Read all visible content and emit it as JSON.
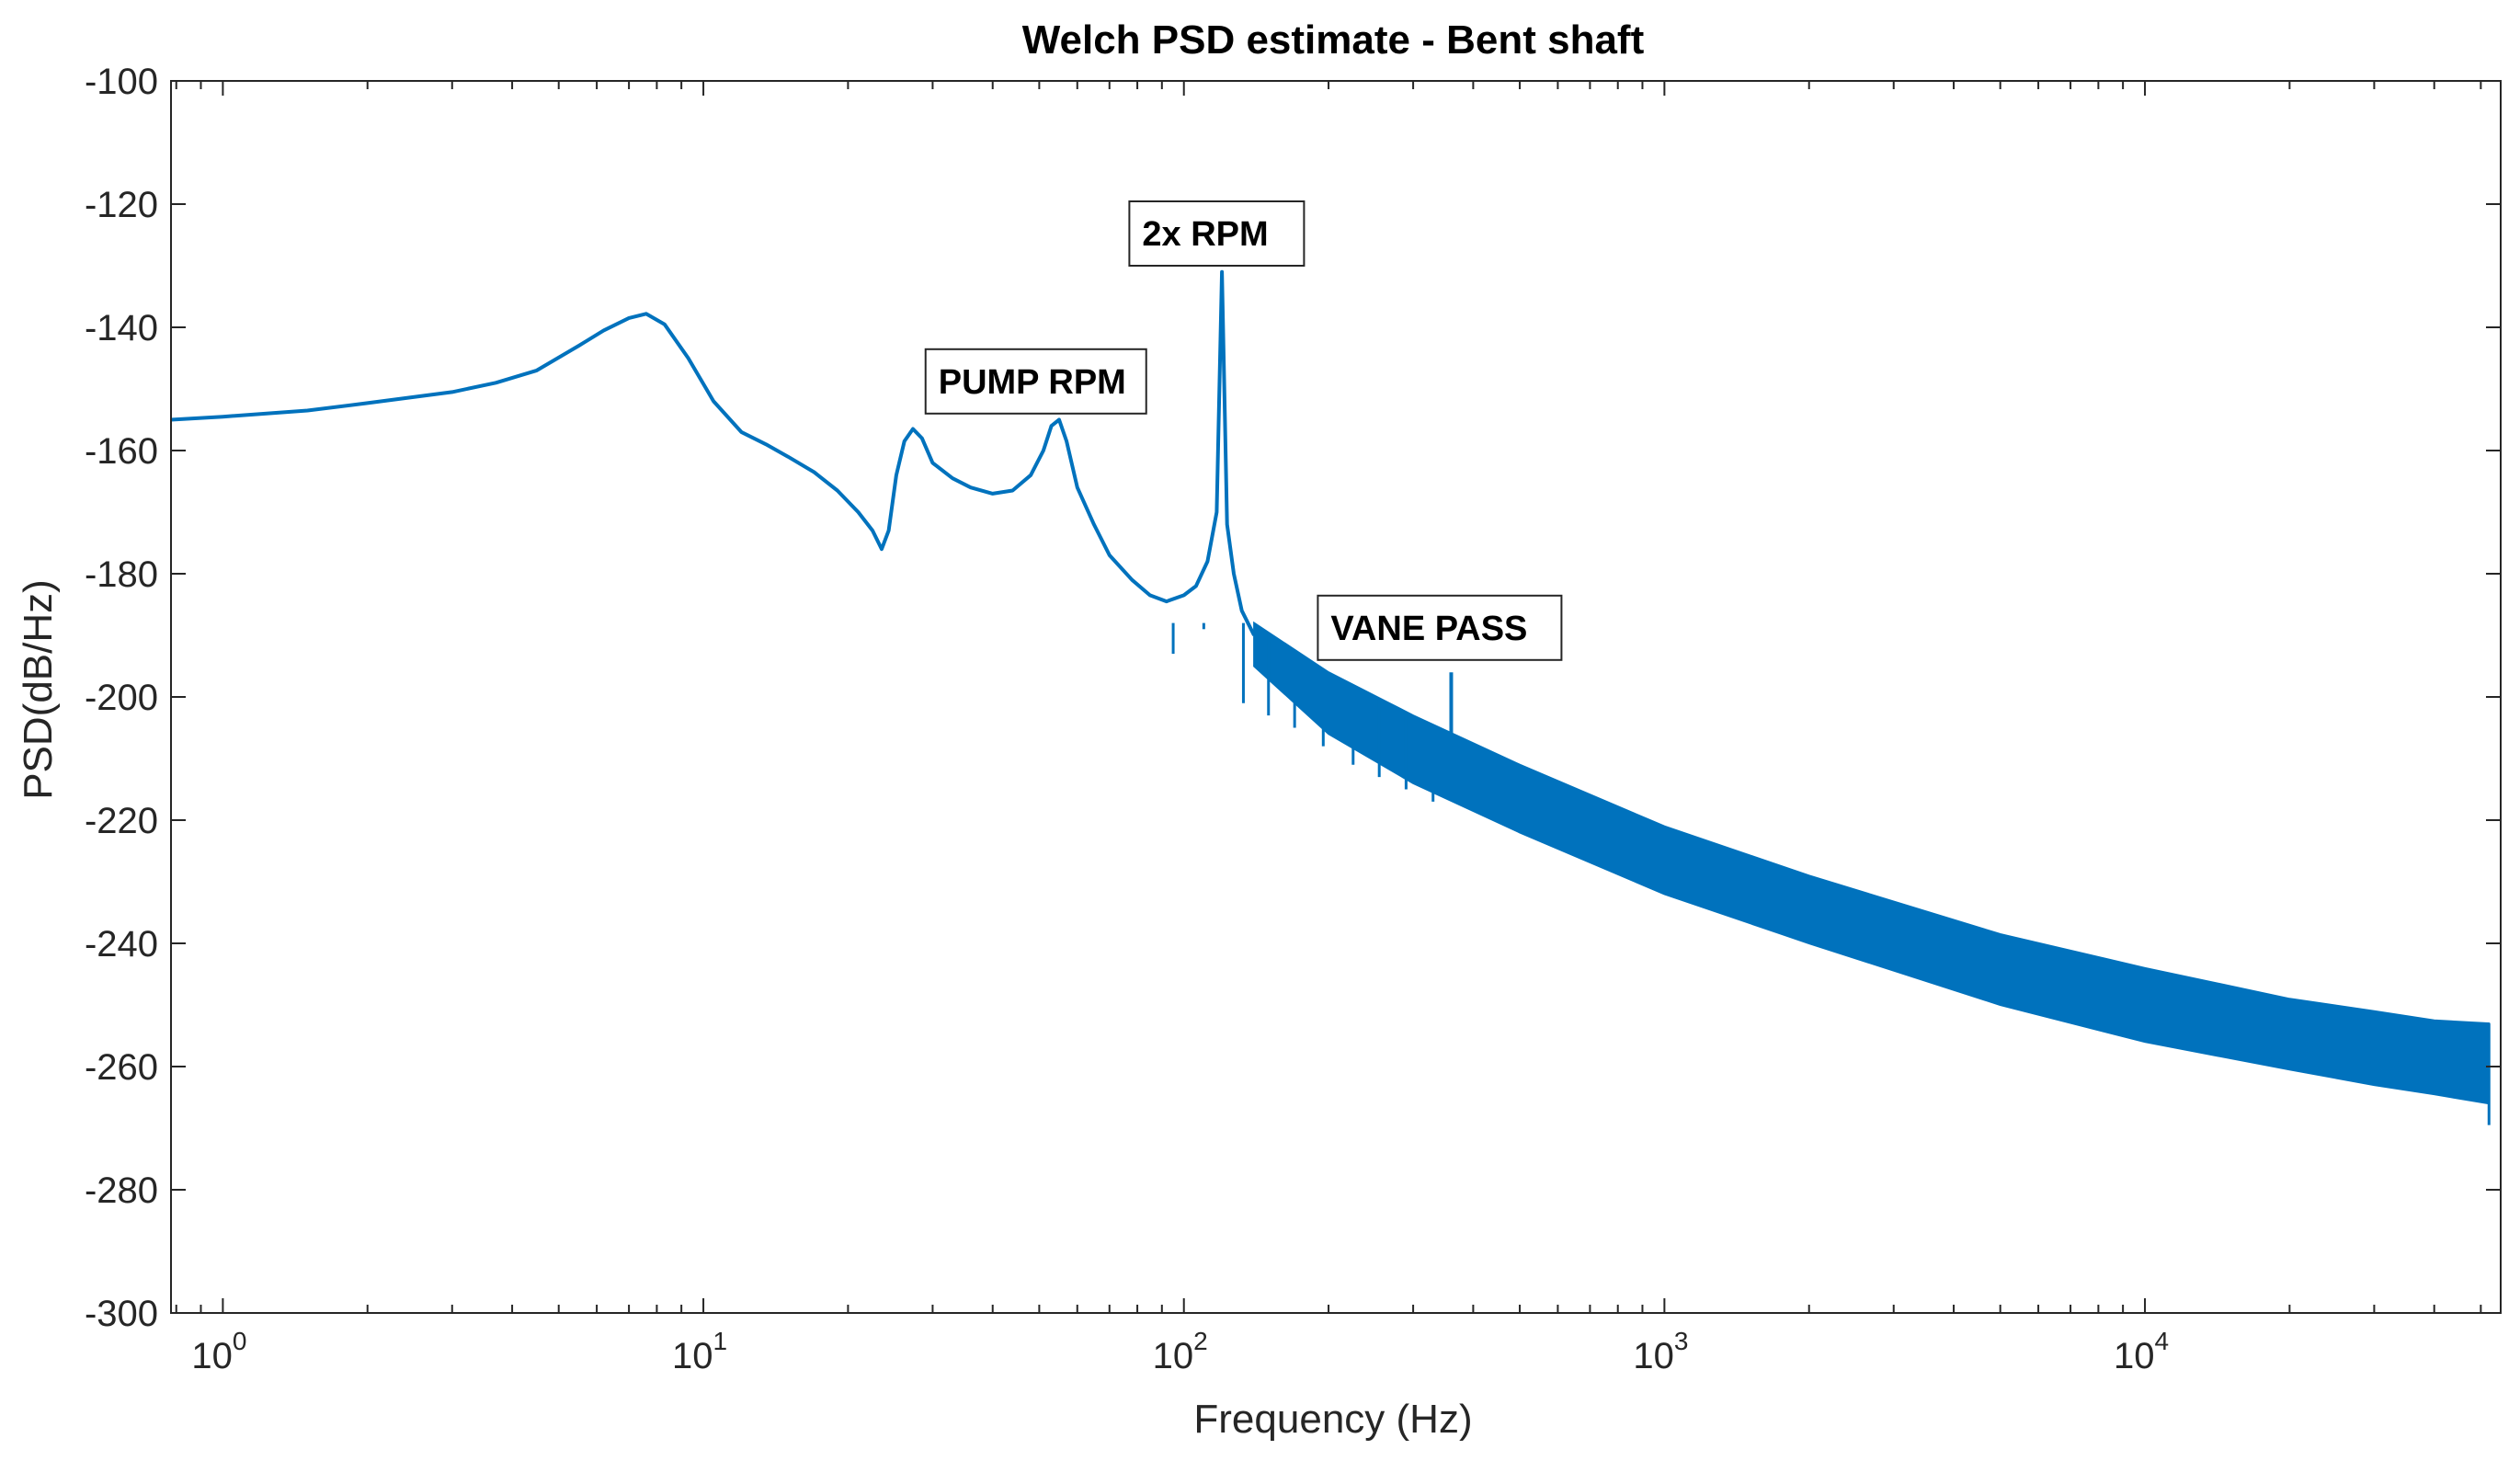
{
  "chart_data": {
    "type": "line",
    "title": "Welch PSD estimate - Bent shaft",
    "xlabel": "Frequency (Hz)",
    "ylabel": "PSD(dB/Hz)",
    "xscale": "log",
    "xlim": [
      0.78,
      55000
    ],
    "ylim": [
      -300,
      -100
    ],
    "grid": false,
    "colors": {
      "line": "#0072BD",
      "axes": "#262626",
      "background": "#ffffff"
    },
    "y_ticks": [
      {
        "value": -100,
        "label": "-100"
      },
      {
        "value": -120,
        "label": "-120"
      },
      {
        "value": -140,
        "label": "-140"
      },
      {
        "value": -160,
        "label": "-160"
      },
      {
        "value": -180,
        "label": "-180"
      },
      {
        "value": -200,
        "label": "-200"
      },
      {
        "value": -220,
        "label": "-220"
      },
      {
        "value": -240,
        "label": "-240"
      },
      {
        "value": -260,
        "label": "-260"
      },
      {
        "value": -280,
        "label": "-280"
      },
      {
        "value": -300,
        "label": "-300"
      }
    ],
    "x_ticks": [
      {
        "value": 1,
        "base": "10",
        "exp": "0"
      },
      {
        "value": 10,
        "base": "10",
        "exp": "1"
      },
      {
        "value": 100,
        "base": "10",
        "exp": "2"
      },
      {
        "value": 1000,
        "base": "10",
        "exp": "3"
      },
      {
        "value": 10000,
        "base": "10",
        "exp": "4"
      }
    ],
    "series": [
      {
        "x": [
          0.78,
          1,
          1.5,
          2,
          3,
          3.7,
          4.5,
          5.5,
          6.2,
          7,
          7.6,
          8.3,
          9.3,
          10.5,
          12,
          13.5,
          15,
          17,
          19,
          21,
          22.5,
          23.5,
          24.3,
          25.2,
          26.2,
          27.3,
          28.5,
          30,
          33,
          36,
          40,
          44,
          48,
          51,
          53,
          55,
          57,
          60,
          65,
          70,
          78,
          85,
          92,
          100,
          106,
          112,
          117,
          120,
          123,
          127,
          132,
          140
        ],
        "y": [
          -155,
          -154.5,
          -153.5,
          -152.3,
          -150.5,
          -149,
          -147,
          -143,
          -140.5,
          -138.5,
          -137.8,
          -139.5,
          -145,
          -152,
          -157,
          -159,
          -161,
          -163.5,
          -166.5,
          -170,
          -173,
          -176,
          -173,
          -164,
          -158.5,
          -156.5,
          -158,
          -162,
          -164.5,
          -166,
          -167,
          -166.5,
          -164,
          -160,
          -156,
          -155,
          -158.5,
          -166,
          -172,
          -177,
          -181,
          -183.5,
          -184.5,
          -183.5,
          -182,
          -178,
          -170,
          -131,
          -172,
          -180,
          -186,
          -190
        ]
      }
    ],
    "envelope": {
      "x": [
        140,
        200,
        300,
        500,
        1000,
        2000,
        5000,
        10000,
        20000,
        30000,
        40000,
        52000
      ],
      "upper": [
        -188,
        -196,
        -203,
        -211,
        -221,
        -229,
        -238.5,
        -244,
        -249,
        -251,
        -252.5,
        -253
      ],
      "lower": [
        -195,
        -206,
        -214,
        -222,
        -232,
        -240,
        -250,
        -256,
        -260.5,
        -263,
        -264.5,
        -266
      ]
    },
    "notches": [
      {
        "x": 95,
        "y": -193
      },
      {
        "x": 110,
        "y": -189
      },
      {
        "x": 133,
        "y": -201
      },
      {
        "x": 150,
        "y": -203
      },
      {
        "x": 170,
        "y": -205
      },
      {
        "x": 195,
        "y": -208
      },
      {
        "x": 225,
        "y": -211
      },
      {
        "x": 255,
        "y": -213
      },
      {
        "x": 290,
        "y": -215
      },
      {
        "x": 330,
        "y": -217
      },
      {
        "x": 52000,
        "y": -269.5
      }
    ],
    "spikes": [
      {
        "x": 360,
        "base": -209,
        "peak": -196
      }
    ],
    "annotations": [
      {
        "text": "PUMP RPM",
        "x": 29,
        "y": -154
      },
      {
        "text": "2x RPM",
        "x": 77,
        "y": -130
      },
      {
        "text": "VANE PASS",
        "x": 190,
        "y": -194
      }
    ]
  }
}
